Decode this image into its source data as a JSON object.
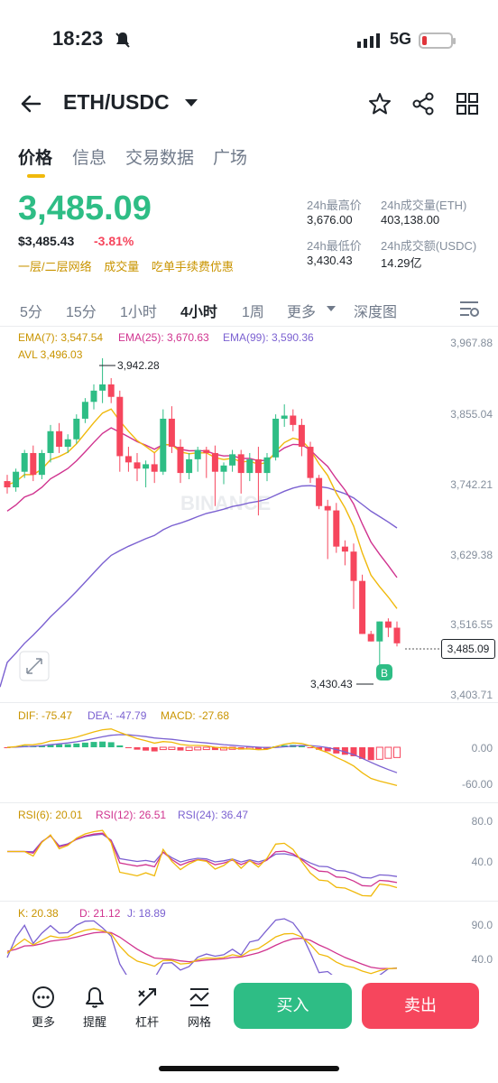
{
  "status": {
    "time": "18:23",
    "network": "5G"
  },
  "header": {
    "pair": "ETH/USDC"
  },
  "tabs": [
    {
      "label": "价格"
    },
    {
      "label": "信息"
    },
    {
      "label": "交易数据"
    },
    {
      "label": "广场"
    }
  ],
  "ticker": {
    "price": "3,485.09",
    "usd_price": "$3,485.43",
    "change": "-3.81%",
    "tags": [
      "一层/二层网络",
      "成交量",
      "吃单手续费优惠"
    ],
    "high_label": "24h最高价",
    "high": "3,676.00",
    "vol_eth_label": "24h成交量(ETH)",
    "vol_eth": "403,138.00",
    "low_label": "24h最低价",
    "low": "3,430.43",
    "vol_usdc_label": "24h成交额(USDC)",
    "vol_usdc": "14.29亿"
  },
  "intervals": [
    "5分",
    "15分",
    "1小时",
    "4小时",
    "1周",
    "更多",
    "深度图"
  ],
  "active_interval": "4小时",
  "main_chart": {
    "ema7": "EMA(7): 3,547.54",
    "ema25": "EMA(25): 3,670.63",
    "ema99": "EMA(99): 3,590.36",
    "avl": "AVL 3,496.03",
    "y_ticks": [
      "3,967.88",
      "3,855.04",
      "3,742.21",
      "3,629.38",
      "3,516.55",
      "3,403.71"
    ],
    "high_marker": "3,942.28",
    "low_marker": "3,430.43",
    "current": "3,485.09",
    "buy_marker": "B",
    "watermark": "BINANCE"
  },
  "macd": {
    "dif": "DIF: -75.47",
    "dea": "DEA: -47.79",
    "macd": "MACD: -27.68",
    "y_ticks": [
      "0.00",
      "-60.00"
    ]
  },
  "rsi": {
    "rsi6": "RSI(6): 20.01",
    "rsi12": "RSI(12): 26.51",
    "rsi24": "RSI(24): 36.47",
    "y_ticks": [
      "80.0",
      "40.0"
    ]
  },
  "kdj": {
    "k": "K: 20.38",
    "d": "D: 21.12",
    "j": "J: 18.89",
    "y_ticks": [
      "90.0",
      "40.0"
    ]
  },
  "colors": {
    "up": "#2ebd85",
    "down": "#f6465d",
    "accent": "#f0b90b",
    "ema7": "#f0b90b",
    "ema25": "#d0338f",
    "ema99": "#7b61d1"
  },
  "bottom_bar": {
    "more": "更多",
    "alert": "提醒",
    "leverage": "杠杆",
    "grid": "网格",
    "buy": "买入",
    "sell": "卖出"
  },
  "candles": [
    [
      3745,
      3755,
      3725,
      3735
    ],
    [
      3735,
      3765,
      3728,
      3760
    ],
    [
      3760,
      3795,
      3750,
      3790
    ],
    [
      3790,
      3802,
      3745,
      3755
    ],
    [
      3755,
      3795,
      3748,
      3790
    ],
    [
      3790,
      3835,
      3775,
      3825
    ],
    [
      3825,
      3838,
      3790,
      3800
    ],
    [
      3800,
      3820,
      3790,
      3812
    ],
    [
      3812,
      3852,
      3805,
      3845
    ],
    [
      3845,
      3878,
      3838,
      3872
    ],
    [
      3872,
      3900,
      3860,
      3890
    ],
    [
      3890,
      3942,
      3870,
      3900
    ],
    [
      3900,
      3910,
      3870,
      3880
    ],
    [
      3880,
      3890,
      3760,
      3785
    ],
    [
      3785,
      3800,
      3760,
      3775
    ],
    [
      3775,
      3790,
      3745,
      3765
    ],
    [
      3765,
      3778,
      3735,
      3772
    ],
    [
      3772,
      3790,
      3742,
      3760
    ],
    [
      3760,
      3860,
      3755,
      3845
    ],
    [
      3845,
      3865,
      3790,
      3800
    ],
    [
      3800,
      3812,
      3742,
      3758
    ],
    [
      3758,
      3790,
      3748,
      3780
    ],
    [
      3780,
      3800,
      3760,
      3795
    ],
    [
      3795,
      3800,
      3750,
      3790
    ],
    [
      3790,
      3802,
      3705,
      3760
    ],
    [
      3760,
      3775,
      3740,
      3770
    ],
    [
      3770,
      3795,
      3760,
      3788
    ],
    [
      3788,
      3795,
      3725,
      3758
    ],
    [
      3758,
      3790,
      3745,
      3780
    ],
    [
      3780,
      3800,
      3690,
      3758
    ],
    [
      3758,
      3790,
      3745,
      3783
    ],
    [
      3783,
      3852,
      3778,
      3845
    ],
    [
      3845,
      3868,
      3832,
      3850
    ],
    [
      3850,
      3860,
      3825,
      3835
    ],
    [
      3835,
      3845,
      3785,
      3800
    ],
    [
      3800,
      3808,
      3742,
      3750
    ],
    [
      3750,
      3755,
      3700,
      3705
    ],
    [
      3705,
      3715,
      3620,
      3698
    ],
    [
      3698,
      3710,
      3630,
      3640
    ],
    [
      3640,
      3650,
      3610,
      3632
    ],
    [
      3632,
      3645,
      3540,
      3585
    ],
    [
      3585,
      3595,
      3500,
      3500
    ],
    [
      3500,
      3505,
      3488,
      3488
    ],
    [
      3488,
      3520,
      3430,
      3520
    ],
    [
      3520,
      3525,
      3495,
      3510
    ],
    [
      3510,
      3520,
      3480,
      3485
    ]
  ]
}
